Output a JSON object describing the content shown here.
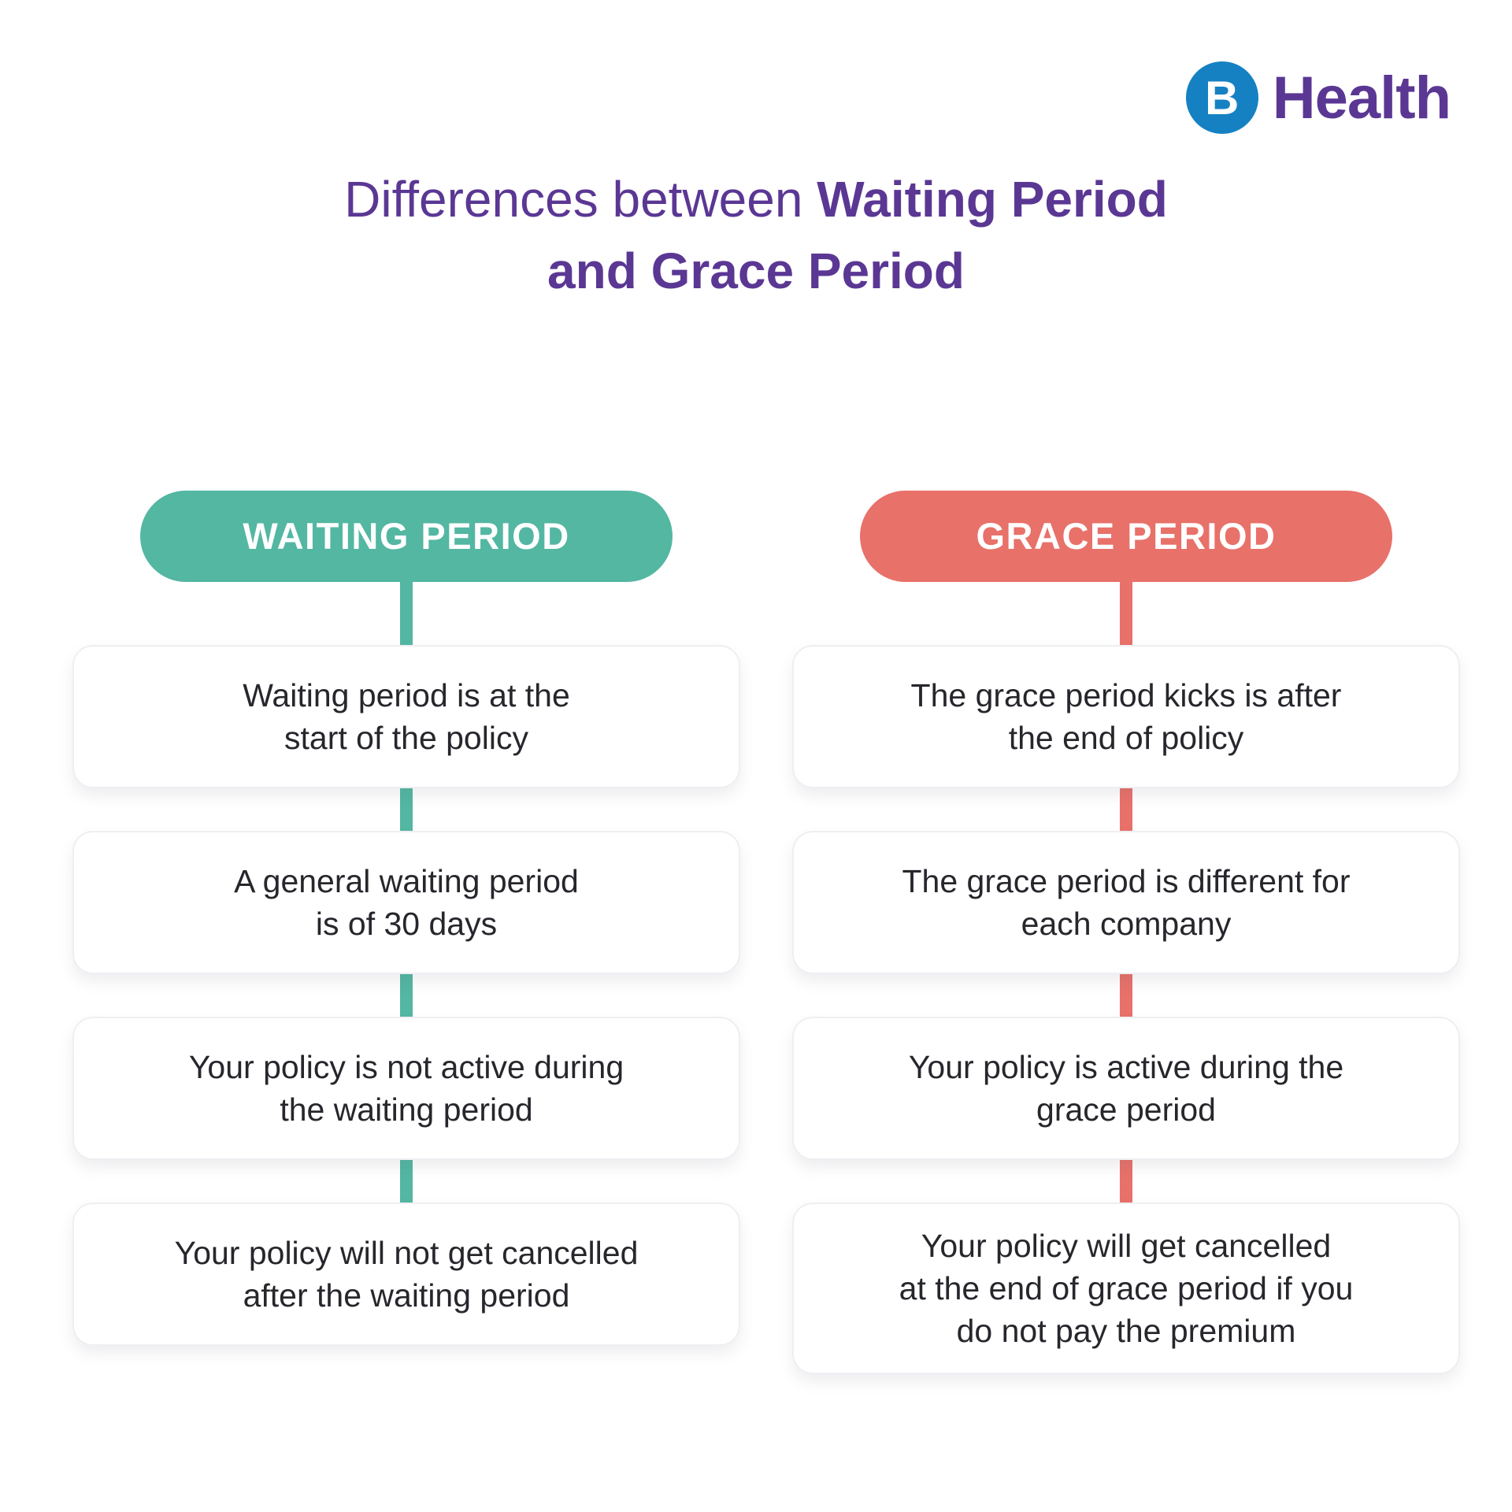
{
  "logo": {
    "mark_letter": "B",
    "brand_text": "Health",
    "mark_color": "#1581C3",
    "text_color": "#5B3794"
  },
  "title": {
    "line1_regular": "Differences between ",
    "line1_bold": "Waiting Period",
    "line2_bold": "and Grace Period",
    "color": "#5B3794"
  },
  "columns": [
    {
      "header": "WAITING PERIOD",
      "accent_color": "#53B7A2",
      "cards": [
        {
          "text": "Waiting period is at the\nstart of the policy"
        },
        {
          "text": "A general waiting period\nis of 30 days"
        },
        {
          "text": "Your policy is not active during\nthe waiting period"
        },
        {
          "text": "Your policy will not get cancelled\nafter the waiting period"
        }
      ]
    },
    {
      "header": "GRACE PERIOD",
      "accent_color": "#E8716A",
      "cards": [
        {
          "text": "The grace period kicks is after\nthe end of policy"
        },
        {
          "text": "The grace period is different for\neach company"
        },
        {
          "text": "Your policy is active during the\ngrace period"
        },
        {
          "text": "Your policy will get cancelled\nat the end of grace period if you\ndo not pay the premium"
        }
      ]
    }
  ]
}
